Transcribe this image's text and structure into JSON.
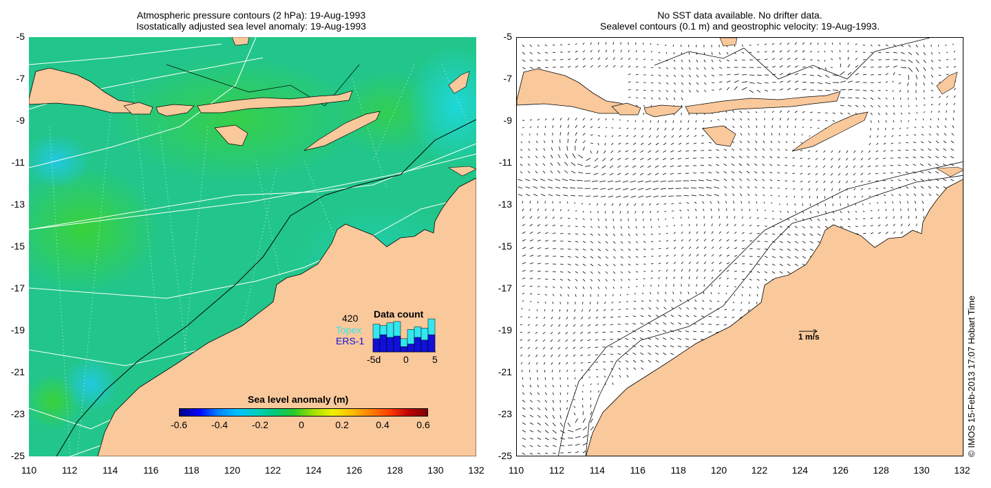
{
  "left_panel": {
    "title_line1": "Atmospheric pressure contours (2 hPa): 19-Aug-1993",
    "title_line2": "Isostatically adjusted sea level anomaly: 19-Aug-1993",
    "y_ticks": [
      "-5",
      "-7",
      "-9",
      "-11",
      "-13",
      "-15",
      "-17",
      "-19",
      "-21",
      "-23",
      "-25"
    ],
    "x_ticks": [
      "110",
      "112",
      "114",
      "116",
      "118",
      "120",
      "122",
      "124",
      "126",
      "128",
      "130",
      "132"
    ],
    "colorbar": {
      "label": "Sea level anomaly (m)",
      "ticks": [
        "-0.6",
        "-0.4",
        "-0.2",
        "0",
        "0.2",
        "0.4",
        "0.6"
      ],
      "range": [
        -0.6,
        0.6
      ]
    },
    "legend": {
      "total": "420",
      "topex": "Topex",
      "ers1": "ERS-1",
      "title": "Data count",
      "axis": [
        "-5d",
        "0",
        "5"
      ],
      "topex_counts": [
        42,
        40,
        44,
        46,
        20,
        34,
        38,
        36,
        50
      ],
      "ers1_counts": [
        20,
        26,
        22,
        24,
        8,
        12,
        22,
        18,
        26
      ]
    }
  },
  "right_panel": {
    "title_line1": "No SST data available.  No drifter data.",
    "title_line2": "Sealevel contours (0.1 m) and geostrophic velocity: 19-Aug-1993.",
    "y_ticks": [
      "-5",
      "-7",
      "-9",
      "-11",
      "-13",
      "-15",
      "-17",
      "-19",
      "-21",
      "-23",
      "-25"
    ],
    "x_ticks": [
      "110",
      "112",
      "114",
      "116",
      "118",
      "120",
      "122",
      "124",
      "126",
      "128",
      "130",
      "132"
    ],
    "velocity_scale": "1 m/s"
  },
  "credit": "© IMOS 15-Feb-2013 17:07 Hobart Time",
  "colors": {
    "land": "#f9c89b",
    "sea_main": "#1fc88c",
    "sea_green": "#28c85a",
    "sea_cyan": "#1fd4c8",
    "topex": "#33e6f0",
    "ers1": "#1010d8"
  }
}
